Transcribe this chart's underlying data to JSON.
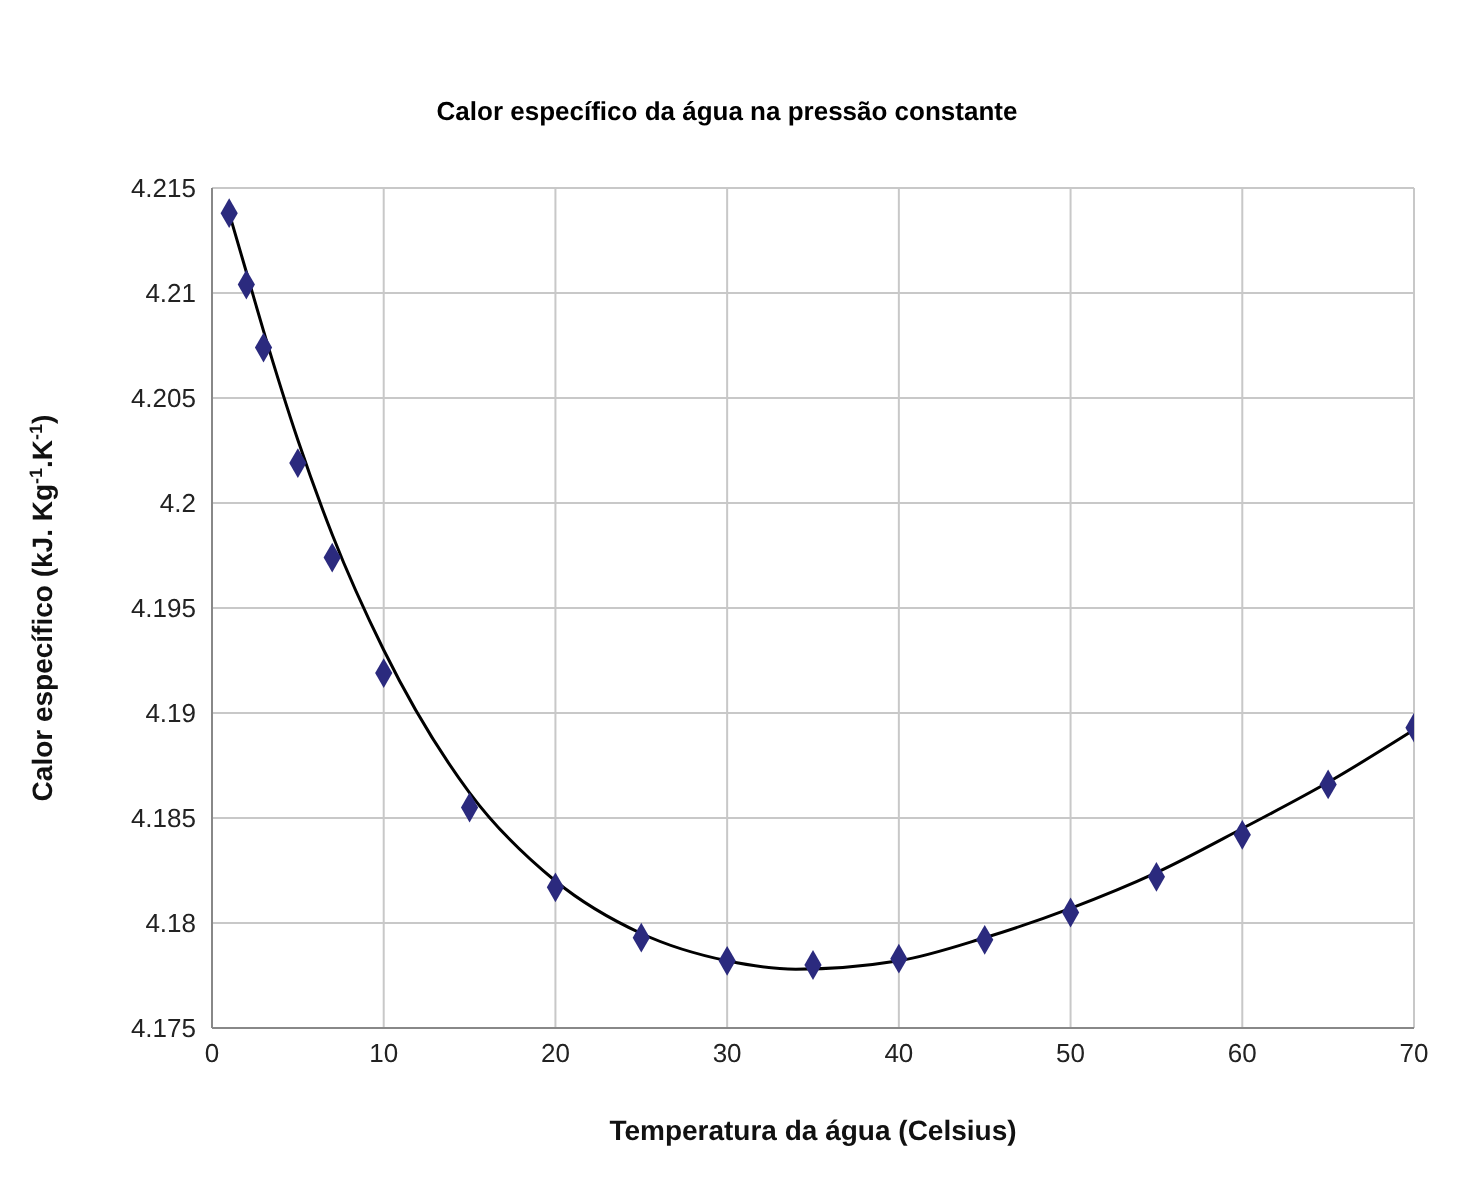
{
  "chart_data": {
    "type": "scatter",
    "title": "Calor específico da água na pressão constante",
    "xlabel": "Temperatura da água (Celsius)",
    "ylabel": "Calor específico (kJ. Kg$^{-1}$.K$^{-1}$)",
    "x": [
      1,
      2,
      3,
      5,
      7,
      10,
      15,
      20,
      25,
      30,
      35,
      40,
      45,
      50,
      55,
      60,
      65,
      70
    ],
    "series": [
      {
        "color": "#2b2a7e",
        "marker": "diamond",
        "values": [
          4.2138,
          4.2104,
          4.2074,
          4.2019,
          4.1974,
          4.1919,
          4.1855,
          4.1817,
          4.1793,
          4.1782,
          4.178,
          4.1783,
          4.1792,
          4.1805,
          4.1822,
          4.1842,
          4.1866,
          4.1893
        ]
      },
      {
        "type": "line",
        "color": "#000000",
        "marker": "none",
        "x": [
          1,
          2,
          3,
          5,
          7,
          10,
          15,
          20,
          25,
          30,
          34,
          40,
          45,
          50,
          55,
          60,
          65,
          70
        ],
        "values": [
          4.2138,
          4.211,
          4.2082,
          4.203,
          4.1985,
          4.193,
          4.1862,
          4.182,
          4.1795,
          4.1782,
          4.1778,
          4.1782,
          4.1793,
          4.1807,
          4.1824,
          4.1845,
          4.1867,
          4.1892
        ]
      }
    ],
    "xlim": [
      0,
      70
    ],
    "xticks": [
      0,
      10,
      20,
      30,
      40,
      50,
      60,
      70
    ],
    "ylim": [
      4.175,
      4.215
    ],
    "yticks": [
      4.175,
      4.18,
      4.185,
      4.19,
      4.195,
      4.2,
      4.205,
      4.21,
      4.215
    ],
    "grid": true,
    "legend": false
  }
}
